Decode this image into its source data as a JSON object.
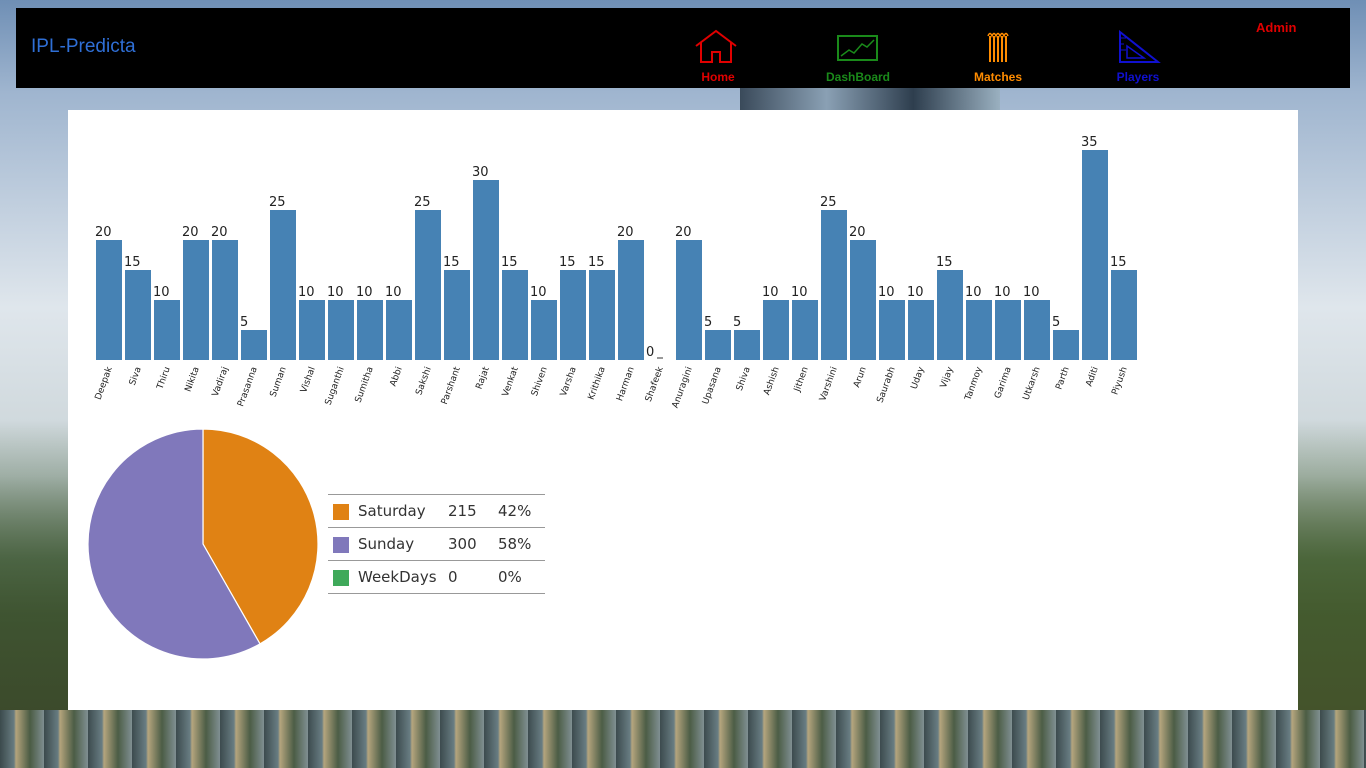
{
  "app": {
    "brand": "IPL-Predicta",
    "admin_label": "Admin"
  },
  "nav": [
    {
      "label": "Home",
      "icon": "home-icon",
      "color": "#e00000"
    },
    {
      "label": "DashBoard",
      "icon": "chart-icon",
      "color": "#1a8a1a"
    },
    {
      "label": "Matches",
      "icon": "stumps-icon",
      "color": "#ff8c00"
    },
    {
      "label": "Players",
      "icon": "setsquare-icon",
      "color": "#1010d0"
    }
  ],
  "chart_data": [
    {
      "type": "bar",
      "categories": [
        "Deepak",
        "Siva",
        "Thiru",
        "Nikita",
        "Vadiraj",
        "Prasanna",
        "Suman",
        "Vishal",
        "Suganthi",
        "Sumitha",
        "Abbi",
        "Sakshi",
        "Parshant",
        "Rajat",
        "Venkat",
        "Shiven",
        "Varsha",
        "Krithika",
        "Harman",
        "Shafeek",
        "Anuragini",
        "Upasana",
        "Shiva",
        "Ashish",
        "Jithen",
        "Varshini",
        "Arun",
        "Saurabh",
        "Uday",
        "Vijay",
        "Tanmoy",
        "Garima",
        "Utkarsh",
        "Parth",
        "Aditi",
        "Piyush"
      ],
      "values": [
        20,
        15,
        10,
        20,
        20,
        5,
        25,
        10,
        10,
        10,
        10,
        25,
        15,
        30,
        15,
        10,
        15,
        15,
        20,
        0,
        20,
        5,
        5,
        10,
        10,
        25,
        20,
        10,
        10,
        15,
        10,
        10,
        10,
        5,
        35,
        15
      ],
      "ylim": [
        0,
        35
      ],
      "bar_color": "#4682b4"
    },
    {
      "type": "pie",
      "slices": [
        {
          "label": "Saturday",
          "value": 215,
          "percent": "42%",
          "color": "#e08214"
        },
        {
          "label": "Sunday",
          "value": 300,
          "percent": "58%",
          "color": "#8078bb"
        },
        {
          "label": "WeekDays",
          "value": 0,
          "percent": "0%",
          "color": "#3fa95a"
        }
      ]
    }
  ]
}
